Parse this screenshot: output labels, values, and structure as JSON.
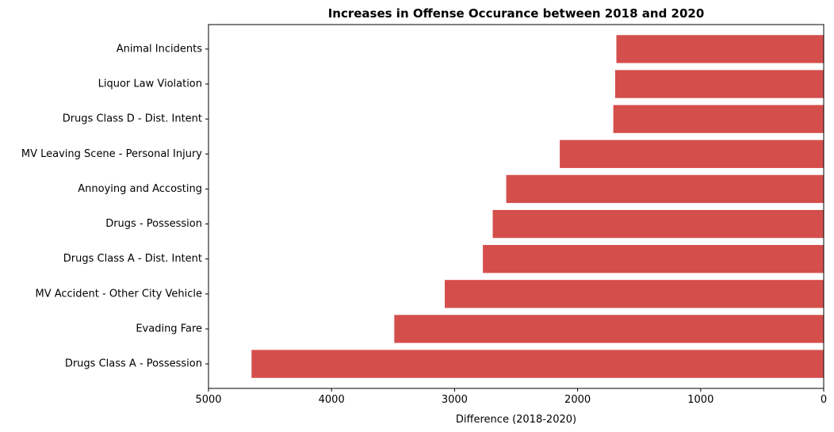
{
  "chart_data": {
    "type": "bar",
    "orientation": "horizontal",
    "title": "Increases in Offense Occurance between 2018 and 2020",
    "xlabel": "Difference (2018-2020)",
    "ylabel": "",
    "x_inverted": true,
    "xlim": [
      5000,
      0
    ],
    "xticks": [
      5000,
      4000,
      3000,
      2000,
      1000,
      0
    ],
    "grid": false,
    "bar_color": "#d44e4c",
    "categories": [
      "Animal Incidents",
      "Liquor Law Violation",
      "Drugs Class D - Dist. Intent",
      "MV Leaving Scene - Personal Injury",
      "Annoying and Accosting",
      "Drugs - Possession",
      "Drugs Class A - Dist. Intent",
      "MV Accident - Other City Vehicle",
      "Evading Fare",
      "Drugs Class A - Possession"
    ],
    "values": [
      1685,
      1695,
      1710,
      2145,
      2580,
      2690,
      2770,
      3080,
      3490,
      4650
    ]
  }
}
